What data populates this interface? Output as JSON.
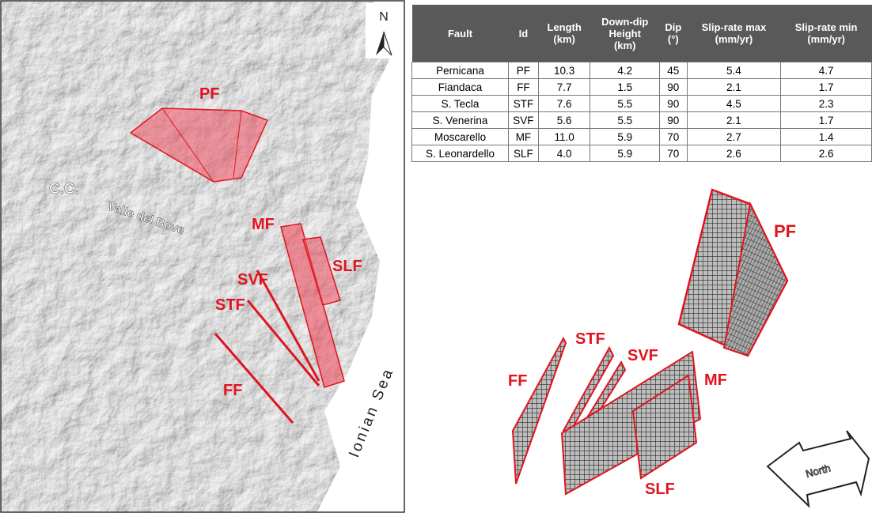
{
  "map": {
    "north": "N",
    "labels": {
      "pf": "PF",
      "cc": "C.C.",
      "valle": "Valle del Bove",
      "mf": "MF",
      "slf": "SLF",
      "svf": "SVF",
      "stf": "STF",
      "ff": "FF",
      "sea": "Ionian Sea"
    }
  },
  "table": {
    "header": [
      [
        "Fault"
      ],
      [
        "Id"
      ],
      [
        "Length",
        "(km)"
      ],
      [
        "Down-dip",
        "Height",
        "(km)"
      ],
      [
        "Dip",
        "(°)"
      ],
      [
        "Slip-rate max",
        "(mm/yr)"
      ],
      [
        "Slip-rate min",
        "(mm/yr)"
      ]
    ],
    "rows": [
      [
        "Pernicana",
        "PF",
        "10.3",
        "4.2",
        "45",
        "5.4",
        "4.7"
      ],
      [
        "Fiandaca",
        "FF",
        "7.7",
        "1.5",
        "90",
        "2.1",
        "1.7"
      ],
      [
        "S. Tecla",
        "STF",
        "7.6",
        "5.5",
        "90",
        "4.5",
        "2.3"
      ],
      [
        "S. Venerina",
        "SVF",
        "5.6",
        "5.5",
        "90",
        "2.1",
        "1.7"
      ],
      [
        "Moscarello",
        "MF",
        "11.0",
        "5.9",
        "70",
        "2.7",
        "1.4"
      ],
      [
        "S. Leonardello",
        "SLF",
        "4.0",
        "5.9",
        "70",
        "2.6",
        "2.6"
      ]
    ]
  },
  "model3d": {
    "north": "North",
    "labels": {
      "pf": "PF",
      "stf": "STF",
      "svf": "SVF",
      "ff": "FF",
      "mf": "MF",
      "slf": "SLF"
    }
  }
}
